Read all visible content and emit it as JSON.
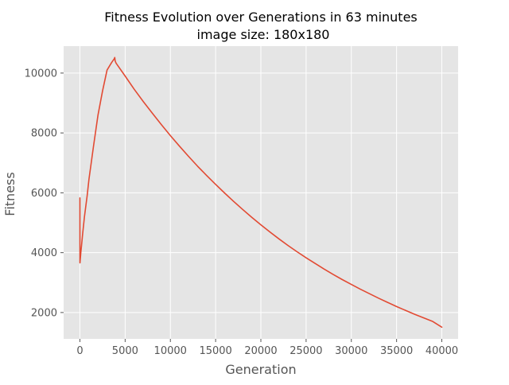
{
  "chart_data": {
    "type": "line",
    "title": "Fitness Evolution over Generations in 63 minutes",
    "subtitle": "image size: 180x180",
    "xlabel": "Generation",
    "ylabel": "Fitness",
    "xlim": [
      -1800,
      41800
    ],
    "ylim": [
      1120,
      10900
    ],
    "xticks": [
      0,
      5000,
      10000,
      15000,
      20000,
      25000,
      30000,
      35000,
      40000
    ],
    "yticks": [
      2000,
      4000,
      6000,
      8000,
      10000
    ],
    "grid": true,
    "legend": false,
    "background": "#e5e5e5",
    "grid_color": "#ffffff",
    "series": [
      {
        "color": "#e24a33",
        "x": [
          0,
          1,
          2,
          4,
          8,
          15,
          30,
          60,
          100,
          200,
          300,
          500,
          800,
          1000,
          1500,
          2000,
          2500,
          3000,
          3500,
          3800,
          3850,
          3900,
          4000,
          5000,
          6000,
          7000,
          8000,
          9000,
          10000,
          11000,
          12000,
          13000,
          14000,
          15000,
          16000,
          17000,
          18000,
          19000,
          20000,
          21000,
          22000,
          23000,
          24000,
          25000,
          26000,
          27000,
          28000,
          29000,
          30000,
          31000,
          32000,
          33000,
          34000,
          35000,
          36000,
          37000,
          38000,
          39000,
          40000
        ],
        "y": [
          5830,
          5100,
          4300,
          3700,
          3660,
          3690,
          3750,
          3850,
          4000,
          4300,
          4620,
          5200,
          5900,
          6450,
          7550,
          8600,
          9400,
          10100,
          10350,
          10480,
          10520,
          10400,
          10330,
          9900,
          9460,
          9050,
          8660,
          8280,
          7910,
          7560,
          7220,
          6890,
          6580,
          6280,
          5990,
          5710,
          5440,
          5180,
          4930,
          4690,
          4460,
          4240,
          4030,
          3830,
          3640,
          3450,
          3270,
          3100,
          2940,
          2780,
          2630,
          2480,
          2340,
          2200,
          2070,
          1940,
          1820,
          1700,
          1510
        ]
      }
    ]
  }
}
